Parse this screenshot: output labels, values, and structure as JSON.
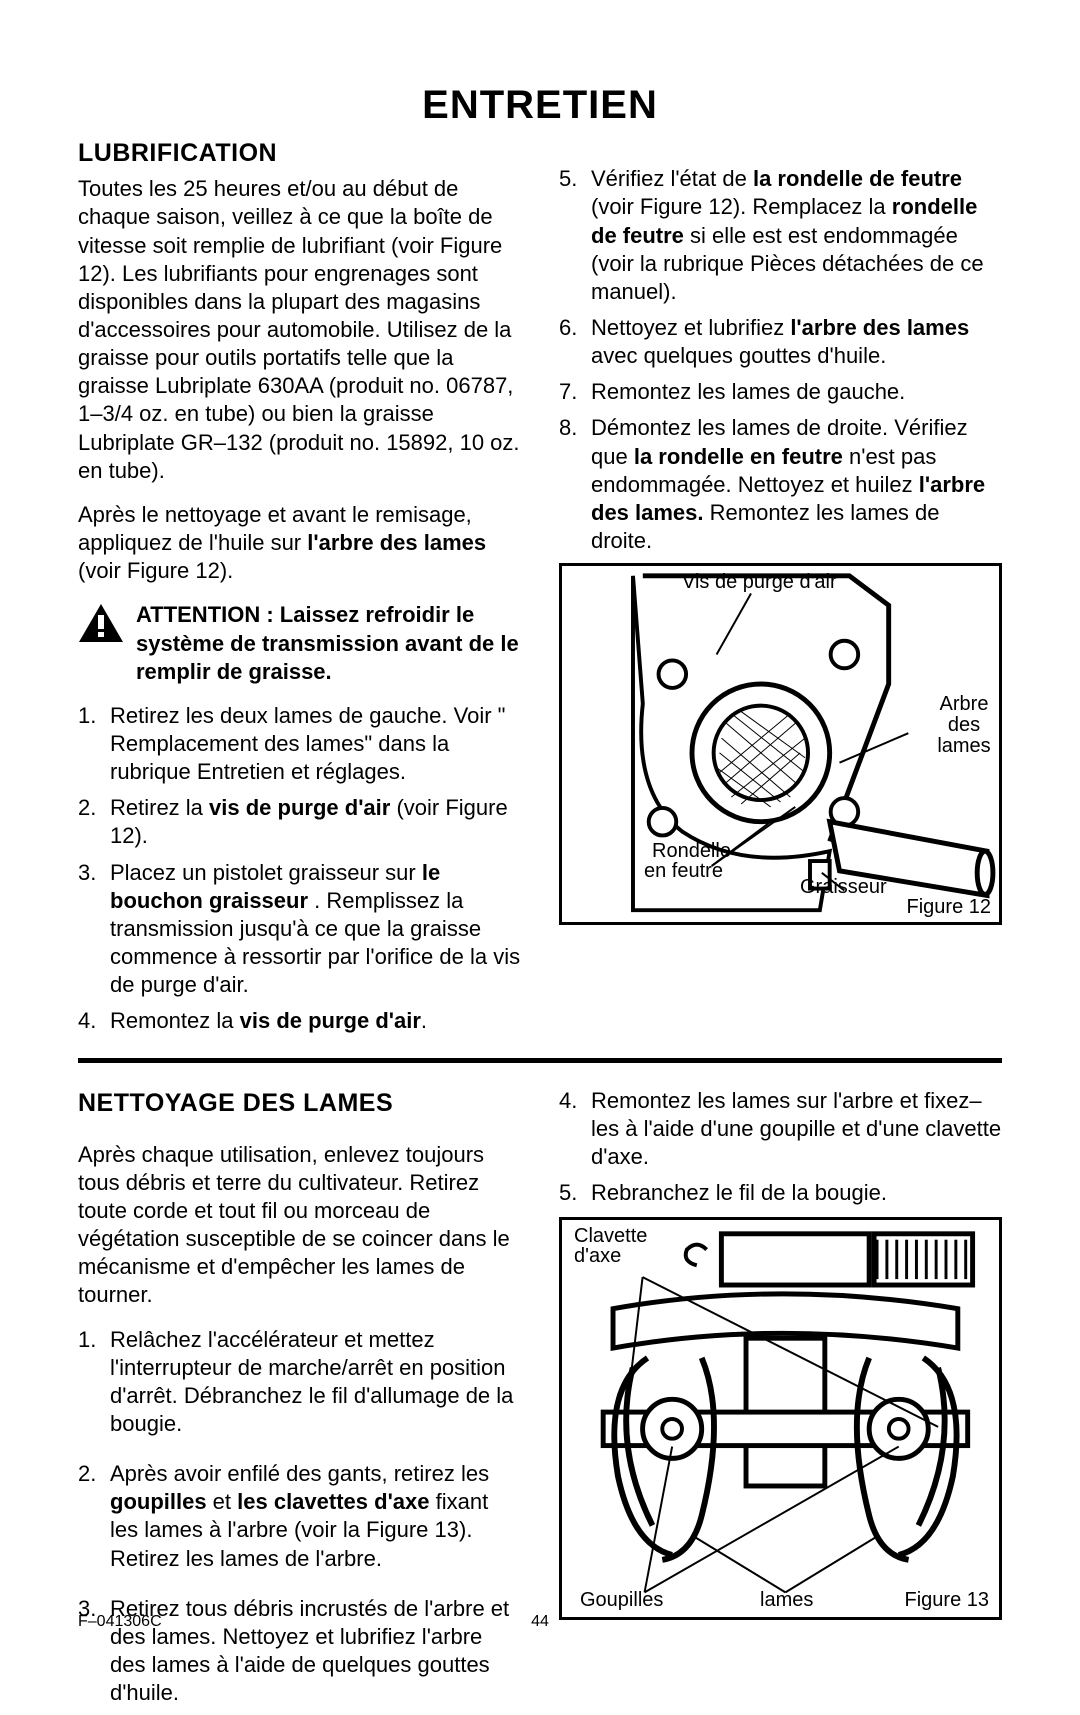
{
  "page_title": "ENTRETIEN",
  "footer_code": "F–041306C",
  "page_number": "44",
  "section1": {
    "heading": "LUBRIFICATION",
    "intro1": "Toutes les 25 heures et/ou au début de chaque saison, veillez à ce que la boîte de vitesse soit remplie de lubrifiant (voir Figure 12). Les lubrifiants pour engrenages sont disponibles dans la plupart des magasins d'accessoires pour automobile. Utilisez de la graisse pour outils portatifs telle que la graisse Lubriplate 630AA (produit no. 06787, 1–3/4 oz. en tube) ou bien la graisse Lubriplate GR–132 (produit no. 15892, 10 oz. en tube).",
    "intro2_a": "Après le nettoyage et avant le remisage, appliquez de l'huile sur ",
    "intro2_b": "l'arbre des lames",
    "intro2_c": " (voir Figure 12).",
    "warning": "ATTENTION : Laissez refroidir le système de transmission avant de le remplir de graisse.",
    "steps_left": [
      {
        "n": "1.",
        "t": "Retirez les deux lames de gauche. Voir \" Remplacement des lames\" dans la rubrique Entretien et réglages."
      },
      {
        "n": "2.",
        "t": "Retirez la <b>vis de purge d'air</b> (voir Figure 12)."
      },
      {
        "n": "3.",
        "t": "Placez un pistolet graisseur sur <b>le bouchon graisseur</b> . Remplissez la transmission jusqu'à ce que la graisse commence à ressortir par l'orifice de la vis de purge d'air."
      },
      {
        "n": "4.",
        "t": "Remontez la <b>vis de purge d'air</b>."
      }
    ],
    "steps_right": [
      {
        "n": "5.",
        "t": "Vérifiez l'état de <b>la rondelle de feutre</b> (voir Figure 12). Remplacez la <b>rondelle de feutre</b>  si elle est est endommagée (voir la rubrique Pièces détachées de ce manuel)."
      },
      {
        "n": "6.",
        "t": "Nettoyez et lubrifiez <b>l'arbre des lames</b> avec quelques gouttes d'huile."
      },
      {
        "n": "7.",
        "t": "Remontez les lames de gauche."
      },
      {
        "n": "8.",
        "t": "Démontez les lames de droite. Vérifiez que <b>la rondelle en feutre</b>  n'est pas endommagée. Nettoyez et huilez <b>l'arbre des lames.</b> Remontez les lames de droite."
      }
    ],
    "fig12": {
      "top": "Vis de purge d'air",
      "right": "Arbre des lames",
      "bl1": "Rondelle",
      "bl2": "en feutre",
      "br": "Graisseur",
      "caption": "Figure 12"
    }
  },
  "section2": {
    "heading": "NETTOYAGE DES LAMES",
    "intro": "Après chaque utilisation, enlevez toujours tous débris et terre du cultivateur. Retirez toute corde et tout fil ou morceau de végétation susceptible de se coincer dans le mécanisme et d'empêcher les lames de tourner.",
    "steps_left": [
      {
        "n": "1.",
        "t": "Relâchez l'accélérateur et mettez l'interrupteur de marche/arrêt en position d'arrêt. Débranchez le fil d'allumage de la bougie."
      },
      {
        "n": "2.",
        "t": "Après avoir enfilé des gants, retirez les <b>goupilles</b> et <b>les clavettes d'axe</b> fixant les lames à l'arbre (voir la Figure 13). Retirez les lames de l'arbre."
      },
      {
        "n": "3.",
        "t": "Retirez tous débris incrustés de l'arbre et des lames. Nettoyez et lubrifiez l'arbre des lames à l'aide de quelques gouttes d'huile."
      }
    ],
    "steps_right": [
      {
        "n": "4.",
        "t": "Remontez les lames sur l'arbre et fixez–les à l'aide d'une goupille et d'une clavette d'axe."
      },
      {
        "n": "5.",
        "t": "Rebranchez le fil de la bougie."
      }
    ],
    "fig13": {
      "tl1": "Clavette",
      "tl2": "d'axe",
      "bl": "Goupilles",
      "bc": "lames",
      "caption": "Figure 13"
    }
  }
}
